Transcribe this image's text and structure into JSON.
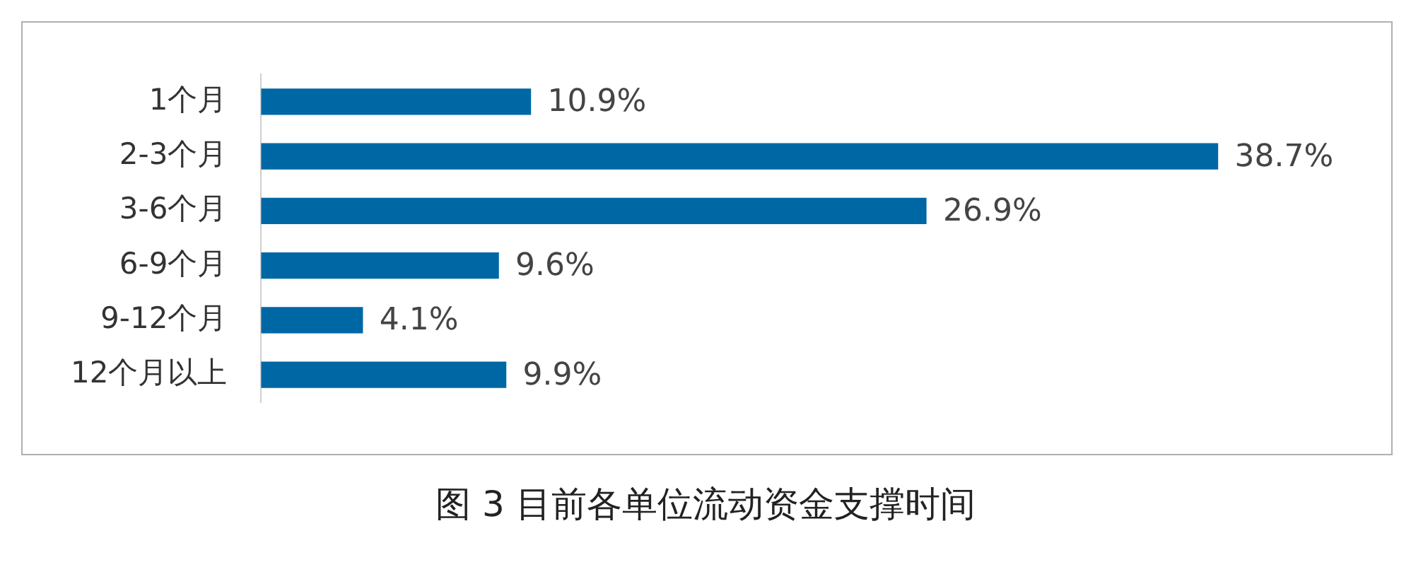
{
  "chart_data": {
    "type": "bar",
    "orientation": "horizontal",
    "title": "图 3  目前各单位流动资金支撑时间",
    "categories": [
      "1个月",
      "2-3个月",
      "3-6个月",
      "6-9个月",
      "9-12个月",
      "12个月以上"
    ],
    "values": [
      10.9,
      38.7,
      26.9,
      9.6,
      4.1,
      9.9
    ],
    "value_labels": [
      "10.9%",
      "38.7%",
      "26.9%",
      "9.6%",
      "4.1%",
      "9.9%"
    ],
    "color": "#0067a5",
    "grid": false,
    "legend": false,
    "tick_labels": "y"
  }
}
